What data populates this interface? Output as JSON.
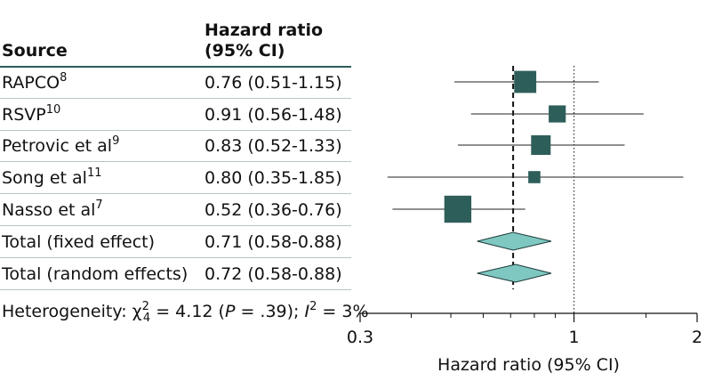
{
  "header": {
    "source": "Source",
    "hr_line1": "Hazard ratio",
    "hr_line2": "(95% CI)"
  },
  "rows": [
    {
      "name": "RAPCO",
      "ref": "8",
      "ci_text": "0.76 (0.51-1.15)"
    },
    {
      "name": "RSVP",
      "ref": "10",
      "ci_text": "0.91 (0.56-1.48)"
    },
    {
      "name": "Petrovic et al",
      "ref": "9",
      "ci_text": "0.83 (0.52-1.33)"
    },
    {
      "name": "Song et al",
      "ref": "11",
      "ci_text": "0.80 (0.35-1.85)"
    },
    {
      "name": "Nasso et al",
      "ref": "7",
      "ci_text": "0.52 (0.36-0.76)"
    },
    {
      "name": "Total (fixed effect)",
      "ref": "",
      "ci_text": "0.71 (0.58-0.88)"
    },
    {
      "name": "Total (random effects)",
      "ref": "",
      "ci_text": "0.72 (0.58-0.88)"
    }
  ],
  "heterogeneity": {
    "prefix": "Heterogeneity: χ",
    "chi_sub": "4",
    "chi_sup": "2",
    "chi_value": " = 4.12 (",
    "p_label": "P",
    "p_value": " = .39); ",
    "i_label": "I",
    "i_sup": "2",
    "i_value": " = 3%"
  },
  "chart_data": {
    "type": "forest",
    "xscale": "log",
    "xlim": [
      0.3,
      2
    ],
    "xticks": [
      "0.3",
      "1",
      "2"
    ],
    "xlabel": "Hazard ratio (95% CI)",
    "reference_line": 1,
    "pooled_estimate_line": 0.71,
    "studies": [
      {
        "label": "RAPCO",
        "hr": 0.76,
        "lo": 0.51,
        "hi": 1.15,
        "weight": 3
      },
      {
        "label": "RSVP",
        "hr": 0.91,
        "lo": 0.56,
        "hi": 1.48,
        "weight": 2
      },
      {
        "label": "Petrovic et al",
        "hr": 0.83,
        "lo": 0.52,
        "hi": 1.33,
        "weight": 2.5
      },
      {
        "label": "Song et al",
        "hr": 0.8,
        "lo": 0.35,
        "hi": 1.85,
        "weight": 1
      },
      {
        "label": "Nasso et al",
        "hr": 0.52,
        "lo": 0.36,
        "hi": 0.76,
        "weight": 4
      }
    ],
    "pooled": [
      {
        "label": "Total (fixed effect)",
        "hr": 0.71,
        "lo": 0.58,
        "hi": 0.88
      },
      {
        "label": "Total (random effects)",
        "hr": 0.72,
        "lo": 0.58,
        "hi": 0.88
      }
    ],
    "colors": {
      "square": "#2e5e5a",
      "diamond": "#7fc8c2",
      "diamond_stroke": "#1c3a38",
      "line": "#222222"
    }
  }
}
